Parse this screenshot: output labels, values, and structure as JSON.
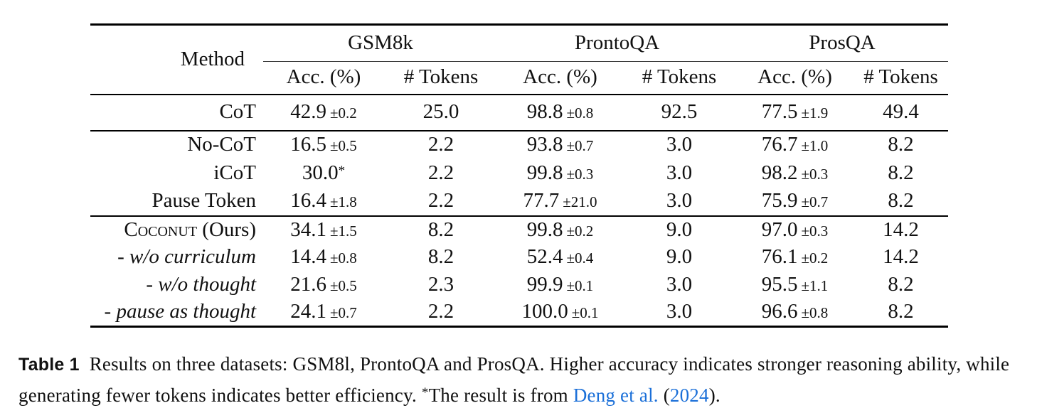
{
  "colors": {
    "link_blue": "#1a6fd8",
    "rule": "#000000",
    "text": "#111111",
    "background": "#ffffff"
  },
  "table": {
    "method_header": "Method",
    "groups": [
      {
        "label": "GSM8k"
      },
      {
        "label": "ProntoQA"
      },
      {
        "label": "ProsQA"
      }
    ],
    "sub": {
      "acc": "Acc. (%)",
      "tokens": "# Tokens"
    },
    "rows": [
      {
        "method": "CoT",
        "a1": "42.9",
        "p1": "±0.2",
        "t1": "25.0",
        "a2": "98.8",
        "p2": "±0.8",
        "t2": "92.5",
        "a3": "77.5",
        "p3": "±1.9",
        "t3": "49.4"
      },
      {
        "method": "No-CoT",
        "a1": "16.5",
        "p1": "±0.5",
        "t1": "2.2",
        "a2": "93.8",
        "p2": "±0.7",
        "t2": "3.0",
        "a3": "76.7",
        "p3": "±1.0",
        "t3": "8.2"
      },
      {
        "method": "iCoT",
        "a1": "30.0",
        "sup1": "*",
        "t1": "2.2",
        "a2": "99.8",
        "p2": "±0.3",
        "t2": "3.0",
        "a3": "98.2",
        "p3": "±0.3",
        "t3": "8.2"
      },
      {
        "method": "Pause Token",
        "a1": "16.4",
        "p1": "±1.8",
        "t1": "2.2",
        "a2": "77.7",
        "p2": "±21.0",
        "t2": "3.0",
        "a3": "75.9",
        "p3": "±0.7",
        "t3": "8.2"
      },
      {
        "method_sc": "Coconut",
        "method": " (Ours)",
        "a1": "34.1",
        "p1": "±1.5",
        "t1": "8.2",
        "a2": "99.8",
        "p2": "±0.2",
        "t2": "9.0",
        "a3": "97.0",
        "p3": "±0.3",
        "t3": "14.2"
      },
      {
        "method": "- w/o curriculum",
        "a1": "14.4",
        "p1": "±0.8",
        "t1": "8.2",
        "a2": "52.4",
        "p2": "±0.4",
        "t2": "9.0",
        "a3": "76.1",
        "p3": "±0.2",
        "t3": "14.2"
      },
      {
        "method": "- w/o thought",
        "a1": "21.6",
        "p1": "±0.5",
        "t1": "2.3",
        "a2": "99.9",
        "p2": "±0.1",
        "t2": "3.0",
        "a3": "95.5",
        "p3": "±1.1",
        "t3": "8.2"
      },
      {
        "method": "- pause as thought",
        "a1": "24.1",
        "p1": "±0.7",
        "t1": "2.2",
        "a2": "100.0",
        "p2": "±0.1",
        "t2": "3.0",
        "a3": "96.6",
        "p3": "±0.8",
        "t3": "8.2"
      }
    ]
  },
  "caption": {
    "label": "Table 1",
    "body": "Results on three datasets: GSM8l, ProntoQA and ProsQA. Higher accuracy indicates stronger reasoning ability, while generating fewer tokens indicates better efficiency.",
    "star": "*",
    "note": "The result is from",
    "cite_authors": "Deng et al.",
    "paren_open": "(",
    "cite_year": "2024",
    "paren_close": ")."
  }
}
